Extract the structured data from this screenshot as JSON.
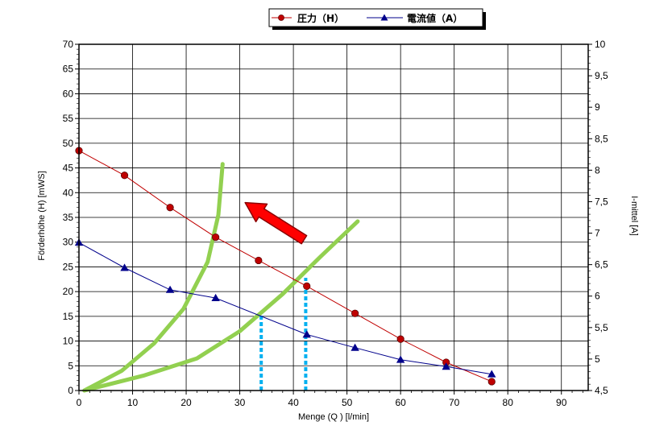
{
  "chart_data": {
    "type": "line",
    "xlabel": "Menge (Q ) [l/min]",
    "ylabel": "Förderhöhe (H)    [mWS]",
    "y2label": "I-mittel          [A]",
    "xlim": [
      0,
      95
    ],
    "ylim": [
      0,
      70
    ],
    "y2lim": [
      4.5,
      10
    ],
    "x_ticks": [
      "0",
      "10",
      "20",
      "30",
      "40",
      "50",
      "60",
      "70",
      "80",
      "90"
    ],
    "y_ticks": [
      "0",
      "5",
      "10",
      "15",
      "20",
      "25",
      "30",
      "35",
      "40",
      "45",
      "50",
      "55",
      "60",
      "65",
      "70"
    ],
    "y2_ticks": [
      "4,5",
      "5",
      "5,5",
      "6",
      "6,5",
      "7",
      "7,5",
      "8",
      "8,5",
      "9",
      "9,5",
      "10"
    ],
    "grid": true,
    "legend_position": "top",
    "series": [
      {
        "name": "圧力（H）",
        "axis": "left",
        "color": "#c00000",
        "marker": "circle",
        "x": [
          0,
          8.5,
          17,
          25.5,
          33.5,
          42.5,
          51.5,
          60,
          68.5,
          77
        ],
        "y": [
          48.5,
          43.5,
          37,
          31,
          26.3,
          21.1,
          15.6,
          10.4,
          5.7,
          1.8
        ]
      },
      {
        "name": "電流値（A）",
        "axis": "right",
        "color": "#00008b",
        "marker": "triangle",
        "x": [
          0,
          8.5,
          17,
          25.5,
          42.5,
          51.5,
          60,
          68.5,
          77
        ],
        "y": [
          6.85,
          6.45,
          6.1,
          5.97,
          5.39,
          5.18,
          4.99,
          4.88,
          4.76
        ]
      }
    ],
    "annotations": {
      "system_curves_color": "#92d050",
      "system_curves": [
        [
          [
            1,
            0
          ],
          [
            8,
            4
          ],
          [
            14,
            9.5
          ],
          [
            19.5,
            16.5
          ],
          [
            24,
            26
          ],
          [
            26,
            35.5
          ],
          [
            26.8,
            45.8
          ]
        ],
        [
          [
            1,
            0
          ],
          [
            12,
            3
          ],
          [
            22,
            6.5
          ],
          [
            30,
            12
          ],
          [
            38,
            19.5
          ],
          [
            45,
            27
          ],
          [
            52,
            34.2
          ]
        ]
      ],
      "operating_point_color": "#00b0f0",
      "operating_points": [
        {
          "x": 34,
          "y": 15.5
        },
        {
          "x": 42.3,
          "y": 22.8
        }
      ],
      "arrow_color": "#ff0000",
      "arrow": {
        "from": [
          42,
          30.5
        ],
        "to": [
          31,
          38
        ]
      }
    }
  }
}
